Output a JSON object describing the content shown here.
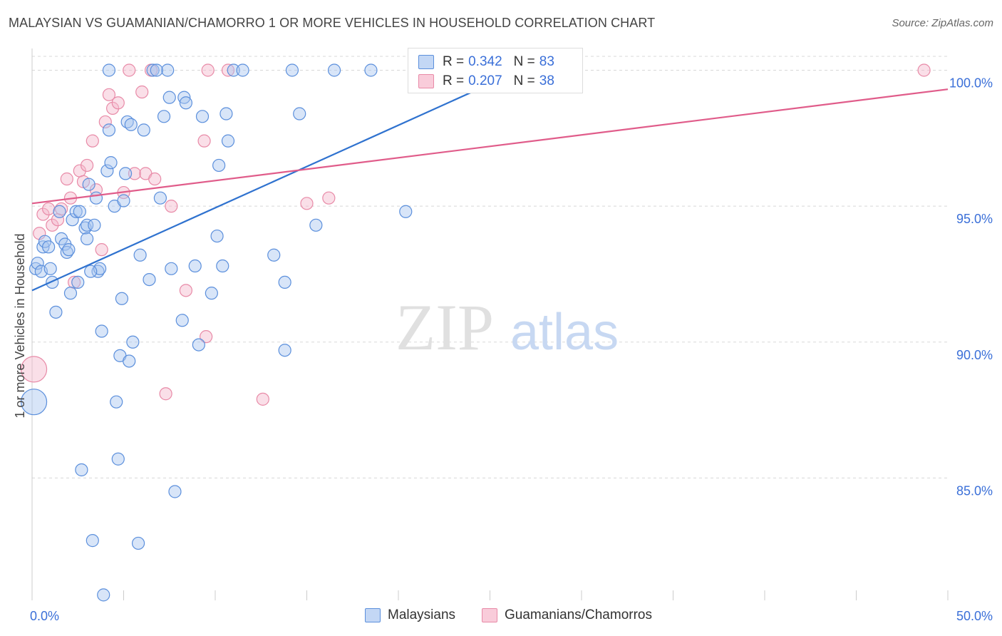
{
  "title": "MALAYSIAN VS GUAMANIAN/CHAMORRO 1 OR MORE VEHICLES IN HOUSEHOLD CORRELATION CHART",
  "source": "Source: ZipAtlas.com",
  "watermark": {
    "zip": "ZIP",
    "atlas": "atlas"
  },
  "legend": {
    "rows": [
      {
        "r_label": "R =",
        "r_value": "0.342",
        "n_label": "N =",
        "n_value": "83"
      },
      {
        "r_label": "R =",
        "r_value": "0.207",
        "n_label": "N =",
        "n_value": "38"
      }
    ]
  },
  "bottom_legend": {
    "malaysians": "Malaysians",
    "guamanians": "Guamanians/Chamorros"
  },
  "colors": {
    "blue_fill": "#a9c6f0",
    "blue_stroke": "#5b8fdc",
    "blue_line": "#2f72cf",
    "pink_fill": "#f5b9cb",
    "pink_stroke": "#e88aa7",
    "pink_line": "#e05c8a",
    "axis_text": "#3a6fd8",
    "grid": "#d8d8d8"
  },
  "chart_data": {
    "type": "scatter",
    "title": "MALAYSIAN VS GUAMANIAN/CHAMORRO 1 OR MORE VEHICLES IN HOUSEHOLD CORRELATION CHART",
    "xlabel": "",
    "ylabel": "1 or more Vehicles in Household",
    "xlim": [
      0,
      50
    ],
    "ylim": [
      80.5,
      100.8
    ],
    "x_tick_labels": [
      {
        "x": 0,
        "label": "0.0%"
      },
      {
        "x": 50,
        "label": "50.0%"
      }
    ],
    "y_ticks": [
      {
        "y": 85,
        "label": "85.0%"
      },
      {
        "y": 90,
        "label": "90.0%"
      },
      {
        "y": 95,
        "label": "95.0%"
      },
      {
        "y": 100,
        "label": "100.0%"
      }
    ],
    "series": [
      {
        "name": "Malaysians",
        "r": 0.342,
        "n": 83,
        "trend": {
          "x": [
            0,
            26
          ],
          "y": [
            91.9,
            99.8
          ]
        },
        "points": [
          {
            "x": 0.1,
            "y": 87.8,
            "s": 18
          },
          {
            "x": 0.2,
            "y": 92.7
          },
          {
            "x": 0.3,
            "y": 92.9
          },
          {
            "x": 0.5,
            "y": 92.6
          },
          {
            "x": 0.6,
            "y": 93.5
          },
          {
            "x": 0.7,
            "y": 93.7
          },
          {
            "x": 0.9,
            "y": 93.5
          },
          {
            "x": 1.0,
            "y": 92.7
          },
          {
            "x": 1.1,
            "y": 92.2
          },
          {
            "x": 1.3,
            "y": 91.1
          },
          {
            "x": 1.5,
            "y": 94.8
          },
          {
            "x": 1.6,
            "y": 93.8
          },
          {
            "x": 1.8,
            "y": 93.6
          },
          {
            "x": 1.9,
            "y": 93.3
          },
          {
            "x": 2.1,
            "y": 91.8
          },
          {
            "x": 2.2,
            "y": 94.5
          },
          {
            "x": 2.4,
            "y": 94.8
          },
          {
            "x": 2.5,
            "y": 92.2
          },
          {
            "x": 2.6,
            "y": 94.8
          },
          {
            "x": 2.7,
            "y": 85.3
          },
          {
            "x": 2.9,
            "y": 94.2
          },
          {
            "x": 3.0,
            "y": 94.3
          },
          {
            "x": 3.0,
            "y": 93.8
          },
          {
            "x": 3.1,
            "y": 95.8
          },
          {
            "x": 3.3,
            "y": 82.7
          },
          {
            "x": 3.4,
            "y": 94.3
          },
          {
            "x": 3.5,
            "y": 95.3
          },
          {
            "x": 3.6,
            "y": 92.6
          },
          {
            "x": 3.7,
            "y": 92.7
          },
          {
            "x": 3.8,
            "y": 90.4
          },
          {
            "x": 3.9,
            "y": 80.7
          },
          {
            "x": 4.1,
            "y": 96.3
          },
          {
            "x": 4.2,
            "y": 97.8
          },
          {
            "x": 4.3,
            "y": 96.6
          },
          {
            "x": 4.5,
            "y": 95.0
          },
          {
            "x": 4.6,
            "y": 87.8
          },
          {
            "x": 4.7,
            "y": 85.7
          },
          {
            "x": 4.8,
            "y": 89.5
          },
          {
            "x": 4.9,
            "y": 91.6
          },
          {
            "x": 5.0,
            "y": 95.2
          },
          {
            "x": 5.1,
            "y": 96.2
          },
          {
            "x": 5.2,
            "y": 98.1
          },
          {
            "x": 5.3,
            "y": 89.3
          },
          {
            "x": 5.5,
            "y": 90.0
          },
          {
            "x": 5.8,
            "y": 82.6
          },
          {
            "x": 5.9,
            "y": 93.2
          },
          {
            "x": 6.1,
            "y": 97.8
          },
          {
            "x": 6.4,
            "y": 92.3
          },
          {
            "x": 6.6,
            "y": 100.0
          },
          {
            "x": 7.0,
            "y": 95.3
          },
          {
            "x": 7.2,
            "y": 98.3
          },
          {
            "x": 7.4,
            "y": 100.0
          },
          {
            "x": 7.5,
            "y": 99.0
          },
          {
            "x": 7.6,
            "y": 92.7
          },
          {
            "x": 7.8,
            "y": 84.5
          },
          {
            "x": 8.2,
            "y": 90.8
          },
          {
            "x": 8.3,
            "y": 99.0
          },
          {
            "x": 8.4,
            "y": 98.8
          },
          {
            "x": 8.9,
            "y": 92.8
          },
          {
            "x": 9.1,
            "y": 89.9
          },
          {
            "x": 9.3,
            "y": 98.3
          },
          {
            "x": 9.8,
            "y": 91.8
          },
          {
            "x": 10.1,
            "y": 93.9
          },
          {
            "x": 10.2,
            "y": 96.5
          },
          {
            "x": 10.4,
            "y": 92.8
          },
          {
            "x": 10.6,
            "y": 98.4
          },
          {
            "x": 10.7,
            "y": 97.4
          },
          {
            "x": 11.0,
            "y": 100.0
          },
          {
            "x": 11.5,
            "y": 100.0
          },
          {
            "x": 13.2,
            "y": 93.2
          },
          {
            "x": 13.8,
            "y": 92.2
          },
          {
            "x": 13.8,
            "y": 89.7
          },
          {
            "x": 14.2,
            "y": 100.0
          },
          {
            "x": 14.6,
            "y": 98.4
          },
          {
            "x": 15.5,
            "y": 94.3
          },
          {
            "x": 16.5,
            "y": 100.0
          },
          {
            "x": 18.5,
            "y": 100.0
          },
          {
            "x": 20.4,
            "y": 94.8
          },
          {
            "x": 4.2,
            "y": 100.0
          },
          {
            "x": 5.4,
            "y": 98.0
          },
          {
            "x": 3.2,
            "y": 92.6
          },
          {
            "x": 6.8,
            "y": 100.0
          },
          {
            "x": 2.0,
            "y": 93.4
          }
        ]
      },
      {
        "name": "Guamanians/Chamorros",
        "r": 0.207,
        "n": 38,
        "trend": {
          "x": [
            0,
            50
          ],
          "y": [
            95.1,
            99.3
          ]
        },
        "points": [
          {
            "x": 0.1,
            "y": 89.0,
            "s": 18
          },
          {
            "x": 0.4,
            "y": 94.0
          },
          {
            "x": 0.6,
            "y": 94.7
          },
          {
            "x": 0.9,
            "y": 94.9
          },
          {
            "x": 1.1,
            "y": 94.3
          },
          {
            "x": 1.4,
            "y": 94.5
          },
          {
            "x": 1.6,
            "y": 94.9
          },
          {
            "x": 1.9,
            "y": 96.0
          },
          {
            "x": 2.1,
            "y": 95.3
          },
          {
            "x": 2.3,
            "y": 92.2
          },
          {
            "x": 2.6,
            "y": 96.3
          },
          {
            "x": 2.8,
            "y": 95.9
          },
          {
            "x": 3.0,
            "y": 96.5
          },
          {
            "x": 3.3,
            "y": 97.4
          },
          {
            "x": 3.5,
            "y": 95.6
          },
          {
            "x": 3.8,
            "y": 93.4
          },
          {
            "x": 4.0,
            "y": 98.1
          },
          {
            "x": 4.2,
            "y": 99.1
          },
          {
            "x": 4.4,
            "y": 98.6
          },
          {
            "x": 4.7,
            "y": 98.8
          },
          {
            "x": 5.0,
            "y": 95.5
          },
          {
            "x": 5.3,
            "y": 100.0
          },
          {
            "x": 5.6,
            "y": 96.2
          },
          {
            "x": 6.0,
            "y": 99.2
          },
          {
            "x": 6.2,
            "y": 96.2
          },
          {
            "x": 6.5,
            "y": 100.0
          },
          {
            "x": 6.7,
            "y": 96.0
          },
          {
            "x": 7.3,
            "y": 88.1
          },
          {
            "x": 7.6,
            "y": 95.0
          },
          {
            "x": 8.4,
            "y": 91.9
          },
          {
            "x": 9.4,
            "y": 97.4
          },
          {
            "x": 9.5,
            "y": 90.2
          },
          {
            "x": 9.6,
            "y": 100.0
          },
          {
            "x": 10.7,
            "y": 100.0
          },
          {
            "x": 12.6,
            "y": 87.9
          },
          {
            "x": 15.0,
            "y": 95.1
          },
          {
            "x": 16.2,
            "y": 95.3
          },
          {
            "x": 48.7,
            "y": 100.0
          }
        ]
      }
    ]
  }
}
